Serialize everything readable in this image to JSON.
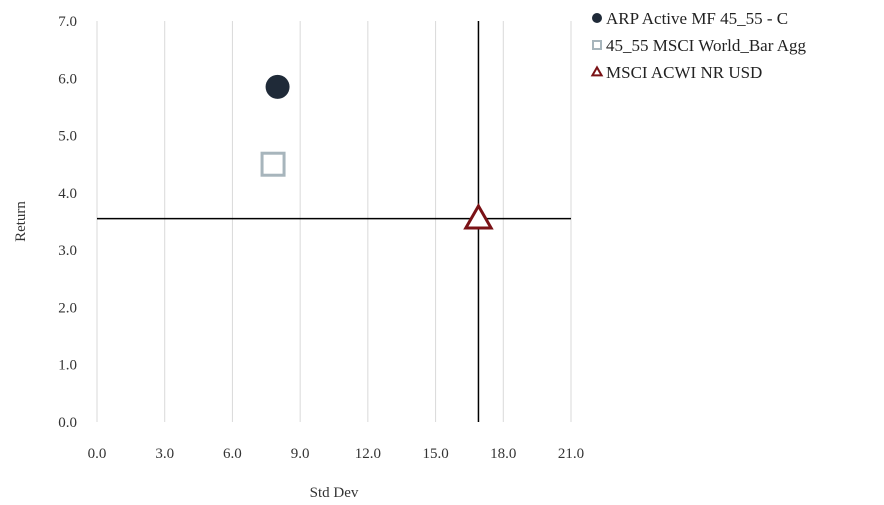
{
  "chart_data": {
    "type": "scatter",
    "xlabel": "Std Dev",
    "ylabel": "Return",
    "xlim": [
      0,
      21
    ],
    "ylim": [
      0,
      7
    ],
    "x_ticks": [
      0,
      3,
      6,
      9,
      12,
      15,
      18,
      21
    ],
    "y_ticks": [
      0,
      1,
      2,
      3,
      4,
      5,
      6,
      7
    ],
    "tick_decimals": 1,
    "grid": {
      "vertical": true,
      "horizontal": false,
      "color": "#d9d9d9"
    },
    "reference_lines": {
      "x": 16.9,
      "y": 3.55,
      "color": "#000000"
    },
    "legend_position": "top-right",
    "series": [
      {
        "name": "ARP Active MF 45_55 - C",
        "marker": "circle",
        "color": "#1f2a38",
        "x": 8.0,
        "y": 5.85
      },
      {
        "name": "45_55 MSCI World_Bar Agg",
        "marker": "square-open",
        "color": "#a7b5bc",
        "x": 7.8,
        "y": 4.5
      },
      {
        "name": "MSCI ACWI NR USD",
        "marker": "triangle-open",
        "color": "#7a1216",
        "x": 16.9,
        "y": 3.55
      }
    ]
  }
}
